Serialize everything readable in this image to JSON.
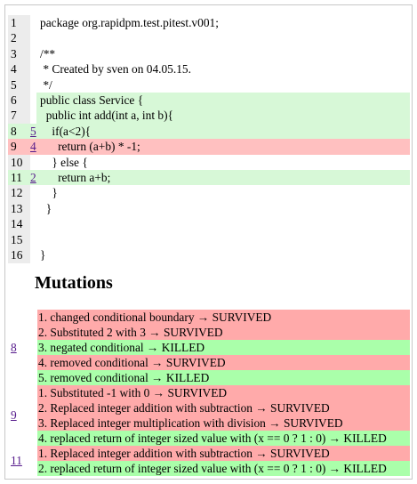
{
  "source_lines": [
    {
      "number": "1",
      "mutation_link": "",
      "code": "package org.rapidpm.test.pitest.v001;",
      "status": "plain"
    },
    {
      "number": "2",
      "mutation_link": "",
      "code": "",
      "status": "plain"
    },
    {
      "number": "3",
      "mutation_link": "",
      "code": "/**",
      "status": "plain"
    },
    {
      "number": "4",
      "mutation_link": "",
      "code": " * Created by sven on 04.05.15.",
      "status": "plain"
    },
    {
      "number": "5",
      "mutation_link": "",
      "code": " */",
      "status": "plain"
    },
    {
      "number": "6",
      "mutation_link": "",
      "code": "public class Service {",
      "status": "covered"
    },
    {
      "number": "7",
      "mutation_link": "",
      "code": "  public int add(int a, int b){",
      "status": "covered"
    },
    {
      "number": "8",
      "mutation_link": "5",
      "code": "    if(a<2){",
      "status": "covered"
    },
    {
      "number": "9",
      "mutation_link": "4",
      "code": "      return (a+b) * -1;",
      "status": "uncovered"
    },
    {
      "number": "10",
      "mutation_link": "",
      "code": "    } else {",
      "status": "plain"
    },
    {
      "number": "11",
      "mutation_link": "2",
      "code": "      return a+b;",
      "status": "covered"
    },
    {
      "number": "12",
      "mutation_link": "",
      "code": "    }",
      "status": "plain"
    },
    {
      "number": "13",
      "mutation_link": "",
      "code": "  }",
      "status": "plain"
    },
    {
      "number": "14",
      "mutation_link": "",
      "code": "",
      "status": "plain"
    },
    {
      "number": "15",
      "mutation_link": "",
      "code": "",
      "status": "plain"
    },
    {
      "number": "16",
      "mutation_link": "",
      "code": "}",
      "status": "plain"
    }
  ],
  "mutations_heading": "Mutations",
  "mutation_groups": [
    {
      "line": "8",
      "items": [
        {
          "text": "1. changed conditional boundary → SURVIVED",
          "status": "SURVIVED"
        },
        {
          "text": "2. Substituted 2 with 3 → SURVIVED",
          "status": "SURVIVED"
        },
        {
          "text": "3. negated conditional → KILLED",
          "status": "KILLED"
        },
        {
          "text": "4. removed conditional → SURVIVED",
          "status": "SURVIVED"
        },
        {
          "text": "5. removed conditional → KILLED",
          "status": "KILLED"
        }
      ]
    },
    {
      "line": "9",
      "items": [
        {
          "text": "1. Substituted -1 with 0 → SURVIVED",
          "status": "SURVIVED"
        },
        {
          "text": "2. Replaced integer addition with subtraction → SURVIVED",
          "status": "SURVIVED"
        },
        {
          "text": "3. Replaced integer multiplication with division → SURVIVED",
          "status": "SURVIVED"
        },
        {
          "text": "4. replaced return of integer sized value with (x == 0 ? 1 : 0) → KILLED",
          "status": "KILLED"
        }
      ]
    },
    {
      "line": "11",
      "items": [
        {
          "text": "1. Replaced integer addition with subtraction → SURVIVED",
          "status": "SURVIVED"
        },
        {
          "text": "2. replaced return of integer sized value with (x == 0 ? 1 : 0) → KILLED",
          "status": "KILLED"
        }
      ]
    }
  ],
  "colors": {
    "covered_bg": "#d7f8d7",
    "uncovered_bg": "#ffc0c0",
    "killed_bg": "#aaffaa",
    "survived_bg": "#ffaaaa",
    "gutter_bg": "#ececec",
    "link": "#551a8b"
  }
}
